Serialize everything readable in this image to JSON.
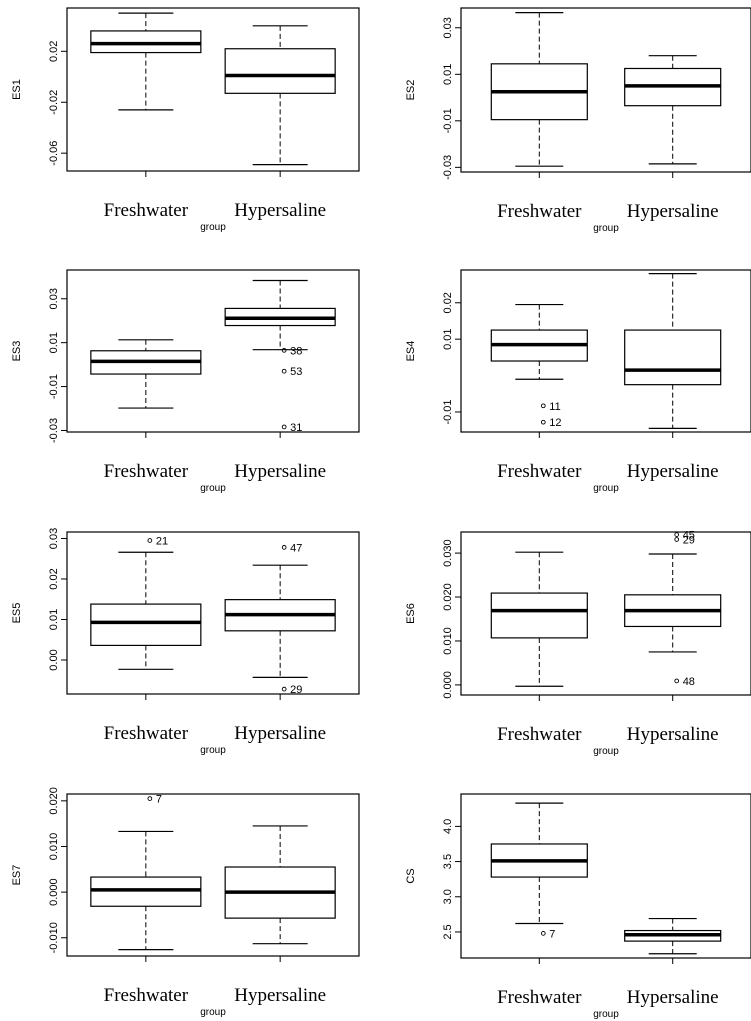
{
  "chart_data": [
    {
      "type": "boxplot",
      "ylabel": "ES1",
      "xlabel": "group",
      "categories": [
        "Freshwater",
        "Hypersaline"
      ],
      "yticks": [
        0.02,
        -0.02,
        -0.06
      ],
      "yticklabels": [
        "0.02",
        "-0.02",
        "-0.06"
      ],
      "ylim": [
        -0.074,
        0.054
      ],
      "boxes": [
        {
          "min": -0.026,
          "q1": 0.019,
          "median": 0.026,
          "q3": 0.036,
          "max": 0.05
        },
        {
          "min": -0.069,
          "q1": -0.013,
          "median": 0.001,
          "q3": 0.022,
          "max": 0.04
        }
      ],
      "outliers": []
    },
    {
      "type": "boxplot",
      "ylabel": "ES2",
      "xlabel": "group",
      "categories": [
        "Freshwater",
        "Hypersaline"
      ],
      "yticks": [
        0.03,
        0.01,
        -0.01,
        -0.03
      ],
      "yticklabels": [
        "0.03",
        "0.01",
        "-0.01",
        "-0.03"
      ],
      "ylim": [
        -0.032,
        0.0385
      ],
      "boxes": [
        {
          "min": -0.0295,
          "q1": -0.0095,
          "median": 0.0025,
          "q3": 0.0145,
          "max": 0.0365
        },
        {
          "min": -0.0285,
          "q1": -0.0035,
          "median": 0.005,
          "q3": 0.0125,
          "max": 0.018
        }
      ],
      "outliers": []
    },
    {
      "type": "boxplot",
      "ylabel": "ES3",
      "xlabel": "group",
      "categories": [
        "Freshwater",
        "Hypersaline"
      ],
      "yticks": [
        0.03,
        0.01,
        -0.01,
        -0.03
      ],
      "yticklabels": [
        "0.03",
        "0.01",
        "-0.01",
        "-0.03"
      ],
      "ylim": [
        -0.0307,
        0.0431
      ],
      "boxes": [
        {
          "min": -0.0198,
          "q1": -0.0043,
          "median": 0.0015,
          "q3": 0.0063,
          "max": 0.0113
        },
        {
          "min": 0.0068,
          "q1": 0.0178,
          "median": 0.0211,
          "q3": 0.0256,
          "max": 0.0383
        }
      ],
      "outliers": [
        {
          "group": 2,
          "value": 0.0065,
          "label": "38"
        },
        {
          "group": 2,
          "value": -0.003,
          "label": "53"
        },
        {
          "group": 2,
          "value": -0.0284,
          "label": "31"
        }
      ]
    },
    {
      "type": "boxplot",
      "ylabel": "ES4",
      "xlabel": "group",
      "categories": [
        "Freshwater",
        "Hypersaline"
      ],
      "yticks": [
        0.02,
        0.01,
        -0.01
      ],
      "yticklabels": [
        "0.02",
        "0.01",
        "-0.01"
      ],
      "ylim": [
        -0.0155,
        0.029
      ],
      "boxes": [
        {
          "min": -0.001,
          "q1": 0.004,
          "median": 0.0085,
          "q3": 0.0125,
          "max": 0.0195
        },
        {
          "min": -0.0145,
          "q1": -0.0025,
          "median": 0.0015,
          "q3": 0.0125,
          "max": 0.028
        }
      ],
      "outliers": [
        {
          "group": 1,
          "value": -0.0083,
          "label": "11"
        },
        {
          "group": 1,
          "value": -0.0128,
          "label": "12"
        }
      ]
    },
    {
      "type": "boxplot",
      "ylabel": "ES5",
      "xlabel": "group",
      "categories": [
        "Freshwater",
        "Hypersaline"
      ],
      "yticks": [
        0.03,
        0.02,
        0.01,
        0.0
      ],
      "yticklabels": [
        "0.03",
        "0.02",
        "0.01",
        "0.00"
      ],
      "ylim": [
        -0.0084,
        0.0316
      ],
      "boxes": [
        {
          "min": -0.0023,
          "q1": 0.0036,
          "median": 0.0093,
          "q3": 0.0138,
          "max": 0.0266
        },
        {
          "min": -0.0043,
          "q1": 0.0072,
          "median": 0.0112,
          "q3": 0.0149,
          "max": 0.0234
        }
      ],
      "outliers": [
        {
          "group": 1,
          "value": 0.0295,
          "label": "21"
        },
        {
          "group": 2,
          "value": 0.0278,
          "label": "47"
        },
        {
          "group": 2,
          "value": -0.0072,
          "label": "29"
        }
      ]
    },
    {
      "type": "boxplot",
      "ylabel": "ES6",
      "xlabel": "group",
      "categories": [
        "Freshwater",
        "Hypersaline"
      ],
      "yticks": [
        0.03,
        0.02,
        0.01,
        0.0
      ],
      "yticklabels": [
        "0.030",
        "0.020",
        "0.010",
        "0.000"
      ],
      "ylim": [
        -0.0023,
        0.0348
      ],
      "boxes": [
        {
          "min": -0.0003,
          "q1": 0.0107,
          "median": 0.0169,
          "q3": 0.0209,
          "max": 0.0302
        },
        {
          "min": 0.0075,
          "q1": 0.0133,
          "median": 0.0169,
          "q3": 0.0205,
          "max": 0.0298
        }
      ],
      "outliers": [
        {
          "group": 2,
          "value": 0.0342,
          "label": "45"
        },
        {
          "group": 2,
          "value": 0.0331,
          "label": "29"
        },
        {
          "group": 2,
          "value": 0.0009,
          "label": "48"
        }
      ]
    },
    {
      "type": "boxplot",
      "ylabel": "ES7",
      "xlabel": "group",
      "categories": [
        "Freshwater",
        "Hypersaline"
      ],
      "yticks": [
        0.02,
        0.01,
        0.0,
        -0.01
      ],
      "yticklabels": [
        "0.020",
        "0.010",
        "0.000",
        "-0.010"
      ],
      "ylim": [
        -0.014,
        0.0215
      ],
      "boxes": [
        {
          "min": -0.0126,
          "q1": -0.0031,
          "median": 0.0005,
          "q3": 0.0033,
          "max": 0.0133
        },
        {
          "min": -0.0113,
          "q1": -0.0057,
          "median": 0.0,
          "q3": 0.0055,
          "max": 0.0145
        }
      ],
      "outliers": [
        {
          "group": 1,
          "value": 0.0205,
          "label": "7"
        }
      ]
    },
    {
      "type": "boxplot",
      "ylabel": "CS",
      "xlabel": "group",
      "categories": [
        "Freshwater",
        "Hypersaline"
      ],
      "yticks": [
        4.0,
        3.5,
        3.0,
        2.5
      ],
      "yticklabels": [
        "4.0",
        "3.5",
        "3.0",
        "2.5"
      ],
      "ylim": [
        2.13,
        4.46
      ],
      "boxes": [
        {
          "min": 2.62,
          "q1": 3.28,
          "median": 3.51,
          "q3": 3.75,
          "max": 4.33
        },
        {
          "min": 2.19,
          "q1": 2.37,
          "median": 2.46,
          "q3": 2.52,
          "max": 2.69
        }
      ],
      "outliers": [
        {
          "group": 1,
          "value": 2.48,
          "label": "7"
        }
      ]
    }
  ]
}
